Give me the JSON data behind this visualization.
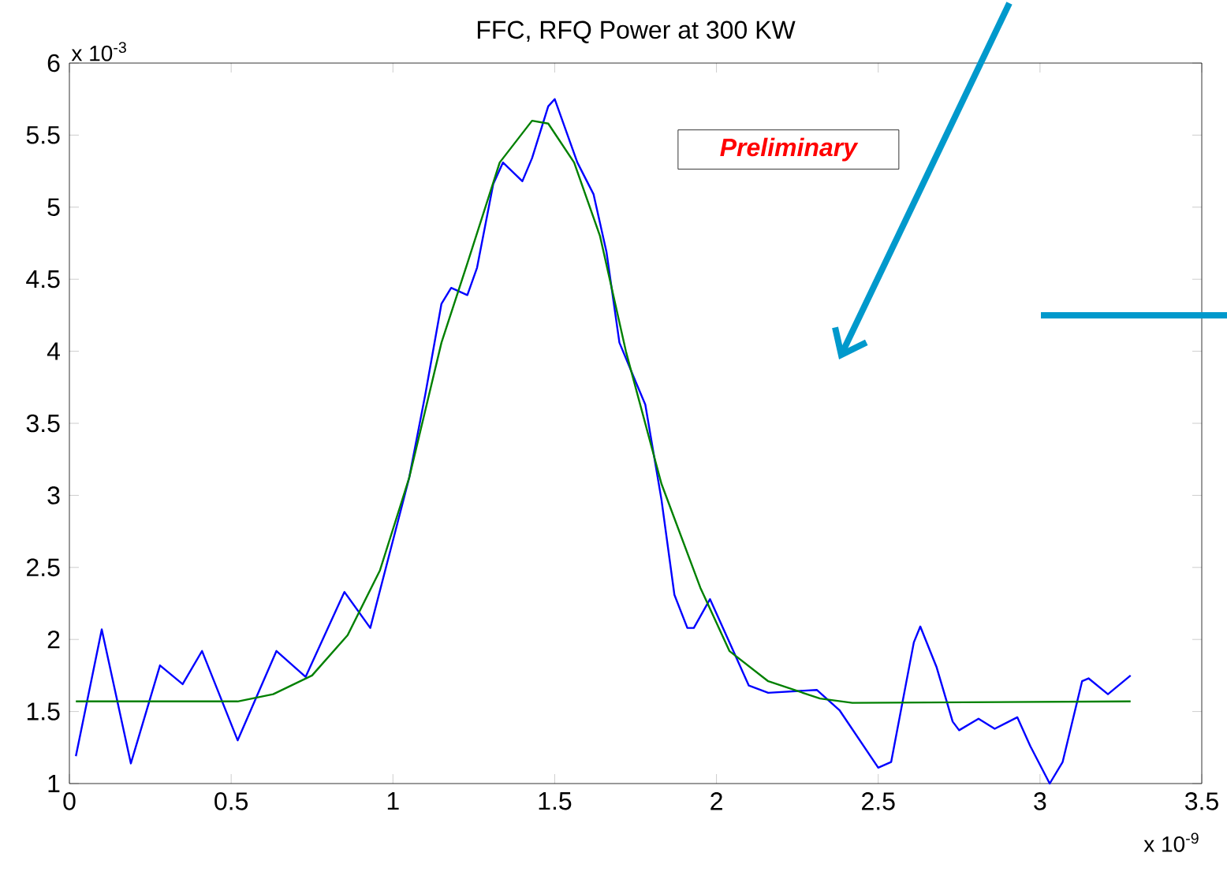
{
  "chart_data": {
    "type": "line",
    "title": "FFC, RFQ Power at 300 KW",
    "xlabel": "x 10$^{-9}$",
    "ylabel": "x 10$^{-3}$",
    "annotations": [
      "Preliminary"
    ],
    "xlim": [
      0,
      3.5
    ],
    "ylim": [
      1,
      6
    ],
    "xticks": [
      0,
      0.5,
      1,
      1.5,
      2,
      2.5,
      3,
      3.5
    ],
    "yticks": [
      1,
      1.5,
      2,
      2.5,
      3,
      3.5,
      4,
      4.5,
      5,
      5.5,
      6
    ],
    "series": [
      {
        "color": "#0000ff",
        "x": [
          0.02,
          0.1,
          0.19,
          0.28,
          0.35,
          0.41,
          0.52,
          0.64,
          0.73,
          0.85,
          0.93,
          1.05,
          1.1,
          1.15,
          1.18,
          1.23,
          1.26,
          1.31,
          1.34,
          1.4,
          1.43,
          1.48,
          1.5,
          1.57,
          1.62,
          1.66,
          1.7,
          1.75,
          1.78,
          1.83,
          1.87,
          1.91,
          1.93,
          1.98,
          2.04,
          2.1,
          2.16,
          2.31,
          2.38,
          2.5,
          2.54,
          2.61,
          2.63,
          2.68,
          2.73,
          2.75,
          2.81,
          2.86,
          2.93,
          2.97,
          3.03,
          3.07,
          3.13,
          3.15,
          3.21,
          3.28
        ],
        "values": [
          1.19,
          2.07,
          1.14,
          1.82,
          1.69,
          1.92,
          1.3,
          1.92,
          1.74,
          2.33,
          2.08,
          3.12,
          3.7,
          4.33,
          4.44,
          4.39,
          4.58,
          5.16,
          5.31,
          5.18,
          5.34,
          5.7,
          5.75,
          5.31,
          5.09,
          4.69,
          4.06,
          3.79,
          3.63,
          2.97,
          2.31,
          2.08,
          2.08,
          2.28,
          1.98,
          1.68,
          1.63,
          1.65,
          1.51,
          1.11,
          1.15,
          1.98,
          2.09,
          1.81,
          1.43,
          1.37,
          1.45,
          1.38,
          1.46,
          1.26,
          1.0,
          1.15,
          1.71,
          1.73,
          1.62,
          1.75
        ]
      },
      {
        "color": "#008000",
        "x": [
          0.02,
          0.52,
          0.63,
          0.75,
          0.86,
          0.96,
          1.05,
          1.15,
          1.23,
          1.33,
          1.43,
          1.48,
          1.56,
          1.64,
          1.72,
          1.83,
          1.95,
          2.04,
          2.16,
          2.32,
          2.42,
          3.28
        ],
        "values": [
          1.57,
          1.57,
          1.62,
          1.75,
          2.03,
          2.48,
          3.12,
          4.06,
          4.61,
          5.31,
          5.6,
          5.58,
          5.31,
          4.8,
          4.0,
          3.08,
          2.36,
          1.92,
          1.71,
          1.59,
          1.56,
          1.57
        ]
      }
    ]
  }
}
